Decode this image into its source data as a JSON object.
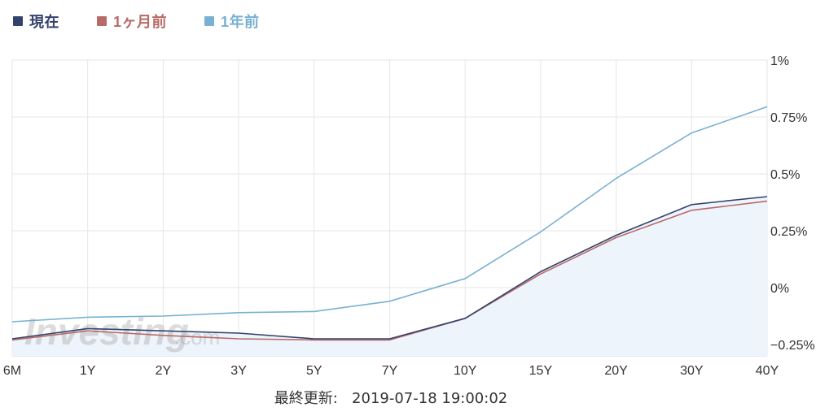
{
  "legend": {
    "items": [
      {
        "label": "現在",
        "color": "#33426e"
      },
      {
        "label": "1ヶ月前",
        "color": "#b86a66"
      },
      {
        "label": "1年前",
        "color": "#78b1d1"
      }
    ]
  },
  "watermark": {
    "text": "Investing",
    "suffix": ".com"
  },
  "footer": {
    "label": "最終更新:",
    "timestamp": "2019-07-18 19:00:02"
  },
  "chart_data": {
    "type": "line",
    "categories": [
      "6M",
      "1Y",
      "2Y",
      "3Y",
      "5Y",
      "7Y",
      "10Y",
      "15Y",
      "20Y",
      "30Y",
      "40Y"
    ],
    "ylim": [
      -0.3,
      1.0
    ],
    "y_axis_position": "right",
    "y_ticks": [
      {
        "value": 1.0,
        "label": "1%"
      },
      {
        "value": 0.75,
        "label": "0.75%"
      },
      {
        "value": 0.5,
        "label": "0.5%"
      },
      {
        "value": 0.25,
        "label": "0.25%"
      },
      {
        "value": 0.0,
        "label": "0%"
      },
      {
        "value": -0.25,
        "label": "−0.25%"
      }
    ],
    "grid": true,
    "legend_position": "top-left",
    "series": [
      {
        "name": "現在",
        "color": "#33426e",
        "area_fill": "#eef4fb",
        "values": [
          -0.225,
          -0.18,
          -0.19,
          -0.2,
          -0.225,
          -0.225,
          -0.135,
          0.07,
          0.23,
          0.365,
          0.4
        ]
      },
      {
        "name": "1ヶ月前",
        "color": "#b86a66",
        "values": [
          -0.23,
          -0.19,
          -0.21,
          -0.225,
          -0.23,
          -0.23,
          -0.135,
          0.06,
          0.22,
          0.34,
          0.38
        ]
      },
      {
        "name": "1年前",
        "color": "#78b1d1",
        "values": [
          -0.15,
          -0.13,
          -0.125,
          -0.11,
          -0.105,
          -0.06,
          0.04,
          0.245,
          0.48,
          0.68,
          0.795
        ]
      }
    ]
  }
}
